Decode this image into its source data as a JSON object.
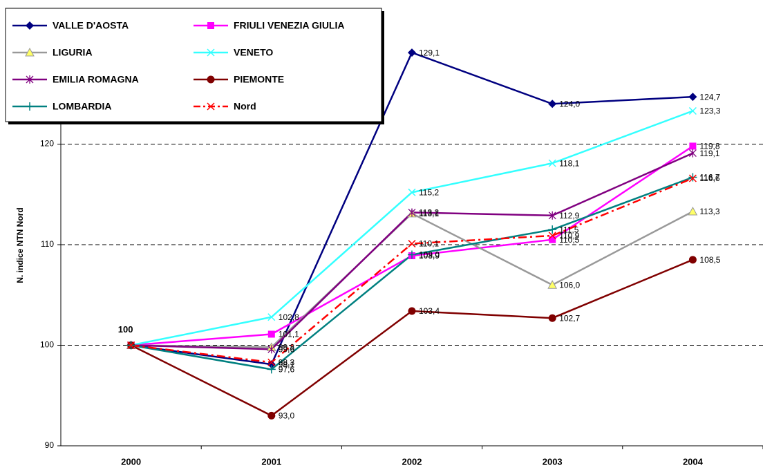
{
  "chart_data": {
    "type": "line",
    "y_label": "N. indice NTN Nord",
    "categories": [
      "2000",
      "2001",
      "2002",
      "2003",
      "2004"
    ],
    "ylim": [
      90,
      130
    ],
    "yticks": [
      90,
      100,
      110,
      120
    ],
    "grid": true,
    "annotations": [
      {
        "text": "100"
      }
    ],
    "series": [
      {
        "name": "VALLE D'AOSTA",
        "color": "#000080",
        "marker": "diamond",
        "values": [
          100,
          98.1,
          129.1,
          124.0,
          124.7
        ],
        "value_labels": [
          null,
          "98,1",
          "129,1",
          "124,0",
          "124,7"
        ]
      },
      {
        "name": "FRIULI VENEZIA GIULIA",
        "color": "#ff00ff",
        "marker": "square",
        "values": [
          100,
          101.1,
          108.9,
          110.5,
          119.8
        ],
        "value_labels": [
          null,
          "101,1",
          "108,9",
          "110,5",
          "119,8"
        ]
      },
      {
        "name": "LIGURIA",
        "color": "#999999",
        "marker": "triangle",
        "marker_fill": "#ffff66",
        "values": [
          100,
          99.8,
          113.1,
          106.0,
          113.3
        ],
        "value_labels": [
          null,
          "99,8",
          "113,1",
          "106,0",
          "113,3"
        ]
      },
      {
        "name": "VENETO",
        "color": "#33ffff",
        "marker": "x",
        "values": [
          100,
          102.8,
          115.2,
          118.1,
          123.3
        ],
        "value_labels": [
          null,
          "102,8",
          "115,2",
          "118,1",
          "123,3"
        ]
      },
      {
        "name": "EMILIA ROMAGNA",
        "color": "#800080",
        "marker": "asterisk",
        "values": [
          100,
          99.6,
          113.2,
          112.9,
          119.1
        ],
        "value_labels": [
          null,
          "99,6",
          "113,2",
          "112,9",
          "119,1"
        ]
      },
      {
        "name": "PIEMONTE",
        "color": "#800000",
        "marker": "circle",
        "values": [
          100,
          93.0,
          103.4,
          102.7,
          108.5
        ],
        "value_labels": [
          null,
          "93,0",
          "103,4",
          "102,7",
          "108,5"
        ]
      },
      {
        "name": "LOMBARDIA",
        "color": "#008080",
        "marker": "plus",
        "values": [
          100,
          97.6,
          109.0,
          111.5,
          116.7
        ],
        "value_labels": [
          null,
          "97,6",
          "109,0",
          "111,5",
          "116,7"
        ]
      },
      {
        "name": "Nord",
        "color": "#ff0000",
        "marker": "x",
        "dash": true,
        "values": [
          100,
          98.3,
          110.1,
          110.9,
          116.6
        ],
        "value_labels": [
          null,
          "98,3",
          "110,1",
          "110,9",
          "116,6"
        ]
      }
    ]
  }
}
